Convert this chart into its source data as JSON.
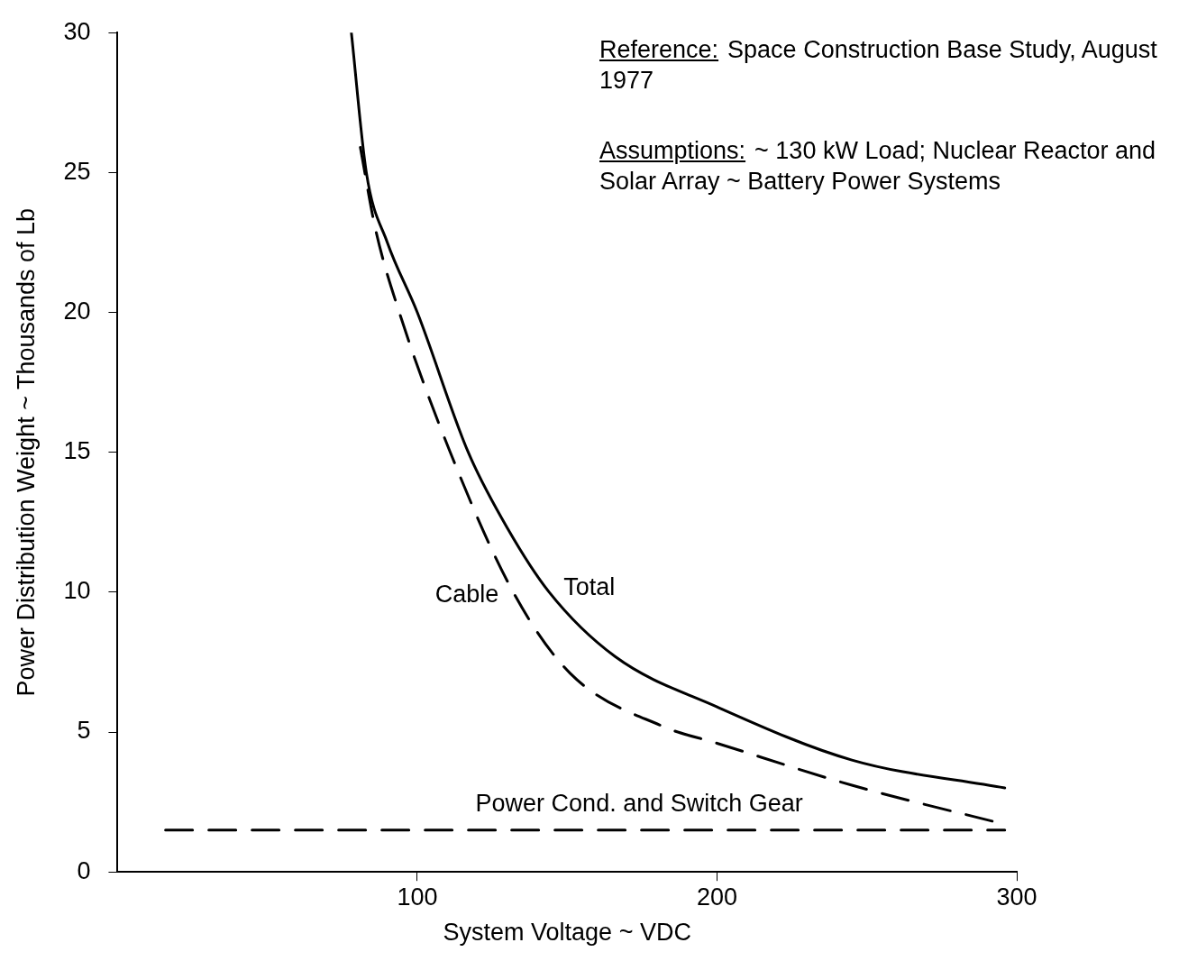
{
  "chart_data": {
    "type": "line",
    "xlabel": "System Voltage ~ VDC",
    "ylabel": "Power Distribution Weight ~ Thousands of Lb",
    "xlim": [
      0,
      300
    ],
    "xticks": [
      100,
      200,
      300
    ],
    "ylim": [
      0,
      30
    ],
    "yticks": [
      0,
      5,
      10,
      15,
      20,
      25,
      30
    ],
    "grid": false,
    "legend": false,
    "marker": "none",
    "series": [
      {
        "name": "Total",
        "color": "#000000",
        "line_style": "solid",
        "x": [
          78,
          83,
          90,
          100,
          117,
          130,
          144,
          166,
          200,
          245,
          296
        ],
        "values": [
          30,
          25,
          22.5,
          20,
          15,
          12.3,
          10,
          7.7,
          5.9,
          4.0,
          3.0
        ]
      },
      {
        "name": "Cable",
        "color": "#000000",
        "line_style": "dashed",
        "x": [
          81,
          86,
          94,
          111,
          132,
          151,
          182,
          200,
          245,
          296
        ],
        "values": [
          25.9,
          23,
          20,
          15,
          10,
          7.1,
          5.2,
          4.6,
          3.1,
          1.7
        ]
      },
      {
        "name": "Power Cond. and Switch Gear",
        "color": "#000000",
        "line_style": "dashed",
        "x": [
          16,
          296
        ],
        "values": [
          1.5,
          1.5
        ]
      }
    ],
    "annotations": [
      "Reference: Space Construction Base Study, August 1977",
      "Assumptions: ~ 130 kW Load; Nuclear Reactor and Solar Array ~ Battery Power Systems"
    ]
  }
}
